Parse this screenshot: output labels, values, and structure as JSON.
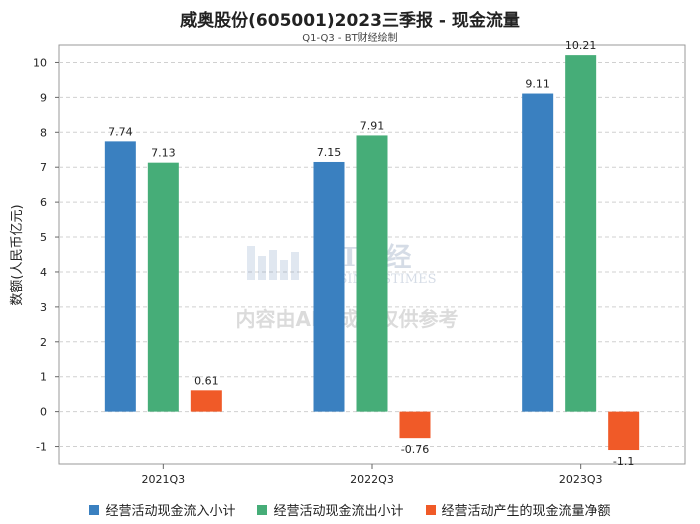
{
  "chart_data": {
    "type": "bar",
    "title": "威奥股份(605001)2023三季报 - 现金流量",
    "subtitle": "Q1-Q3 - BT财经绘制",
    "ylabel": "数额(人民币亿元)",
    "xlabel": "",
    "categories": [
      "2021Q3",
      "2022Q3",
      "2023Q3"
    ],
    "ylim": [
      -1.5,
      10.5
    ],
    "yticks": [
      -1,
      0,
      1,
      2,
      3,
      4,
      5,
      6,
      7,
      8,
      9,
      10
    ],
    "grid": true,
    "legend_position": "bottom",
    "series": [
      {
        "name": "经营活动现金流入小计",
        "color": "#3a80c0",
        "values": [
          7.74,
          7.15,
          9.11
        ],
        "labels": [
          "7.74",
          "7.15",
          "9.11"
        ]
      },
      {
        "name": "经营活动现金流出小计",
        "color": "#46ad78",
        "values": [
          7.13,
          7.91,
          10.21
        ],
        "labels": [
          "7.13",
          "7.91",
          "10.21"
        ]
      },
      {
        "name": "经营活动产生的现金流量净额",
        "color": "#f05a28",
        "values": [
          0.61,
          -0.76,
          -1.1
        ],
        "labels": [
          "0.61",
          "-0.76",
          "-1.1"
        ]
      }
    ],
    "watermark": {
      "brand": "BT财经",
      "brand_sub": "BUSINESSTIMES",
      "notice": "内容由AI生成，仅供参考"
    }
  }
}
